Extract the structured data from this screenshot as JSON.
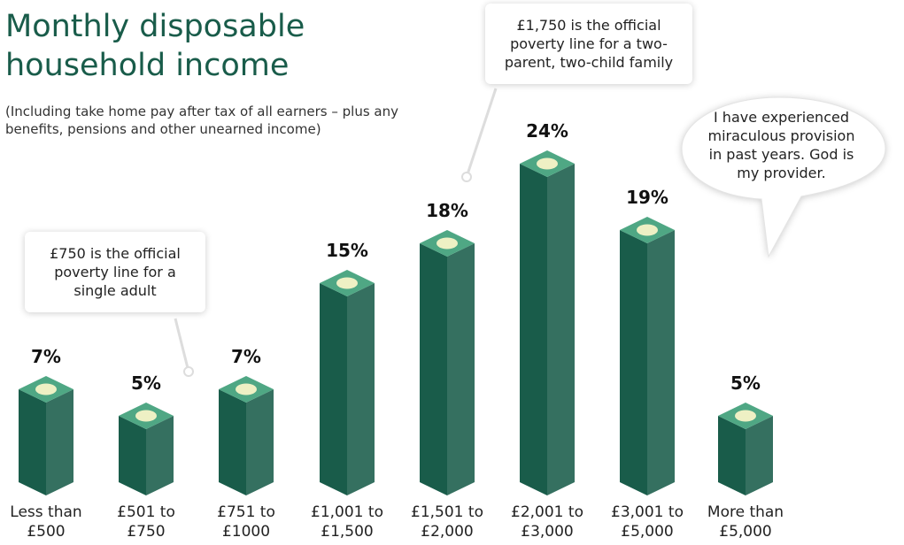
{
  "chart_data": {
    "type": "bar",
    "title": "Monthly disposable household income",
    "subtitle": "(Including take home pay after tax of all earners – plus any benefits, pensions and other unearned income)",
    "categories": [
      "Less than £500",
      "£501 to £750",
      "£751 to £1000",
      "£1,001 to £1,500",
      "£1,501 to £2,000",
      "£2,001 to £3,000",
      "£3,001 to £5,000",
      "More than £5,000"
    ],
    "values": [
      7,
      5,
      7,
      15,
      18,
      24,
      19,
      5
    ],
    "value_labels": [
      "7%",
      "5%",
      "7%",
      "15%",
      "18%",
      "24%",
      "19%",
      "5%"
    ],
    "color": "#195c4a",
    "annotations": [
      "£1,750 is the official poverty line for a two-parent, two-child family",
      "£750 is the official poverty line for a single adult"
    ],
    "quote": "I have experienced miraculous provision in past years. God is my provider."
  }
}
